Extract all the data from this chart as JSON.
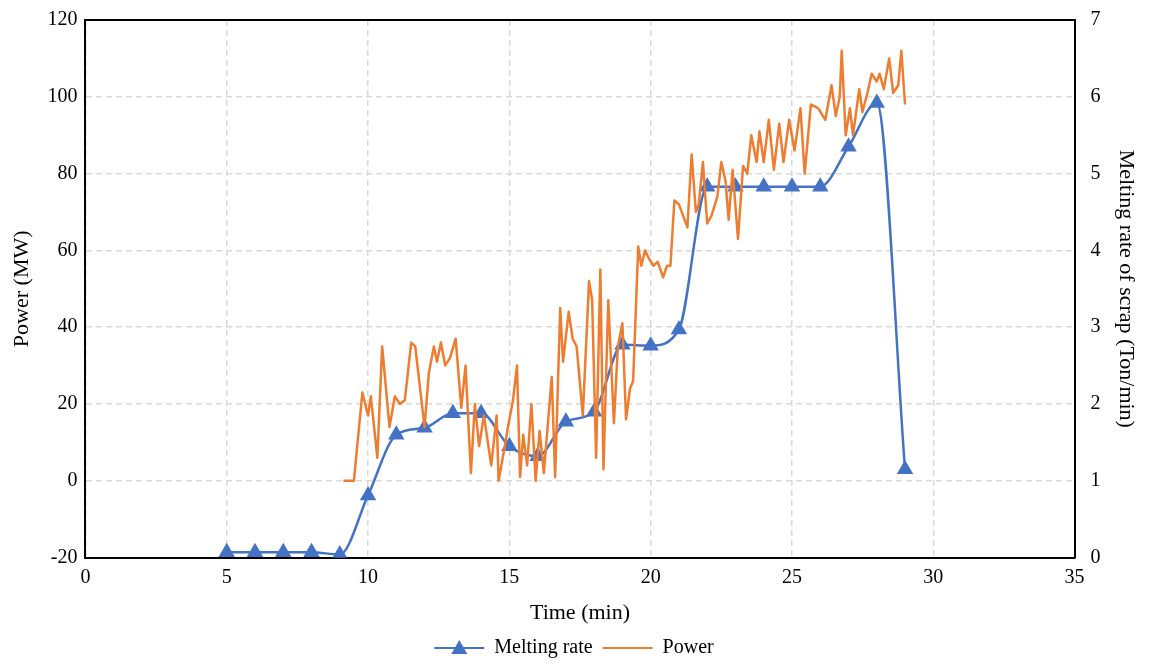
{
  "chart_data": {
    "type": "line",
    "xlabel": "Time (min)",
    "ylabel": "Power (MW)",
    "y2label": "Melting rate of scrap (Ton/min)",
    "xlim": [
      0,
      35
    ],
    "xticks": [
      0,
      5,
      10,
      15,
      20,
      25,
      30,
      35
    ],
    "ylim": [
      -20,
      120
    ],
    "yticks": [
      -20,
      0,
      20,
      40,
      60,
      80,
      100,
      120
    ],
    "y2lim": [
      0,
      7
    ],
    "y2ticks": [
      0,
      1,
      2,
      3,
      4,
      5,
      6,
      7
    ],
    "grid": true,
    "legend": "bottom",
    "line_style": "solid",
    "series": [
      {
        "name": "Melting rate",
        "color": "#4472c4",
        "axis": "y2",
        "marker": "triangle",
        "x": [
          5,
          6,
          7,
          8,
          9,
          10,
          11,
          12,
          13,
          14,
          15,
          16,
          17,
          18,
          19,
          20,
          21,
          22,
          23,
          24,
          25,
          26,
          27,
          28,
          29
        ],
        "values": [
          0.07,
          0.07,
          0.07,
          0.07,
          0.04,
          0.81,
          1.6,
          1.69,
          1.88,
          1.88,
          1.45,
          1.32,
          1.77,
          1.9,
          2.77,
          2.76,
          2.97,
          4.83,
          4.83,
          4.83,
          4.83,
          4.83,
          5.35,
          5.92,
          1.15
        ]
      },
      {
        "name": "Power",
        "color": "#ed7d31",
        "axis": "y",
        "marker": "none",
        "x": [
          9.13,
          9.5,
          9.8,
          10.0,
          10.1,
          10.33,
          10.5,
          10.76,
          10.95,
          11.13,
          11.3,
          11.53,
          11.67,
          12.0,
          12.15,
          12.33,
          12.44,
          12.58,
          12.73,
          12.9,
          13.1,
          13.3,
          13.45,
          13.64,
          13.78,
          13.93,
          14.1,
          14.36,
          14.55,
          14.62,
          14.84,
          14.95,
          15.13,
          15.27,
          15.38,
          15.49,
          15.63,
          15.78,
          15.93,
          16.07,
          16.22,
          16.5,
          16.62,
          16.8,
          16.9,
          17.1,
          17.24,
          17.38,
          17.6,
          17.82,
          17.93,
          18.07,
          18.22,
          18.33,
          18.5,
          18.7,
          18.84,
          19.0,
          19.13,
          19.27,
          19.38,
          19.56,
          19.67,
          19.8,
          19.93,
          20.1,
          20.25,
          20.44,
          20.58,
          20.7,
          20.84,
          21.0,
          21.3,
          21.45,
          21.6,
          21.7,
          21.85,
          22.0,
          22.15,
          22.36,
          22.5,
          22.65,
          22.76,
          22.9,
          23.09,
          23.27,
          23.42,
          23.56,
          23.75,
          23.85,
          24.0,
          24.18,
          24.36,
          24.55,
          24.7,
          24.9,
          25.09,
          25.3,
          25.45,
          25.67,
          25.93,
          26.18,
          26.4,
          26.55,
          26.69,
          26.76,
          26.9,
          27.05,
          27.16,
          27.38,
          27.49,
          27.67,
          27.82,
          28.0,
          28.1,
          28.25,
          28.44,
          28.58,
          28.76,
          28.87,
          29.0
        ],
        "values": [
          0,
          0,
          23,
          17,
          22,
          6,
          35,
          14,
          22,
          20,
          21,
          36,
          35,
          14,
          28,
          35,
          31,
          36,
          30,
          32,
          37,
          19,
          30,
          2,
          20,
          9,
          17,
          4,
          17,
          0,
          9,
          14,
          21,
          30,
          1,
          12,
          4,
          20,
          0,
          13,
          2,
          27,
          1,
          45,
          31,
          44,
          37,
          35,
          17,
          52,
          47,
          6,
          55,
          3,
          47,
          15,
          35,
          41,
          16,
          24,
          26,
          61,
          56,
          60,
          58,
          56,
          57,
          53,
          56,
          56,
          73,
          72,
          66,
          85,
          70,
          72,
          83,
          67,
          69,
          74,
          83,
          78,
          68,
          81,
          63,
          82,
          80,
          90,
          83,
          91,
          83,
          94,
          81,
          93,
          83,
          94,
          86,
          97,
          80,
          98,
          97,
          94,
          103,
          95,
          100,
          112,
          90,
          97,
          90,
          102,
          96,
          101,
          106,
          104,
          106,
          102,
          110,
          101,
          103,
          112,
          98
        ]
      }
    ]
  }
}
